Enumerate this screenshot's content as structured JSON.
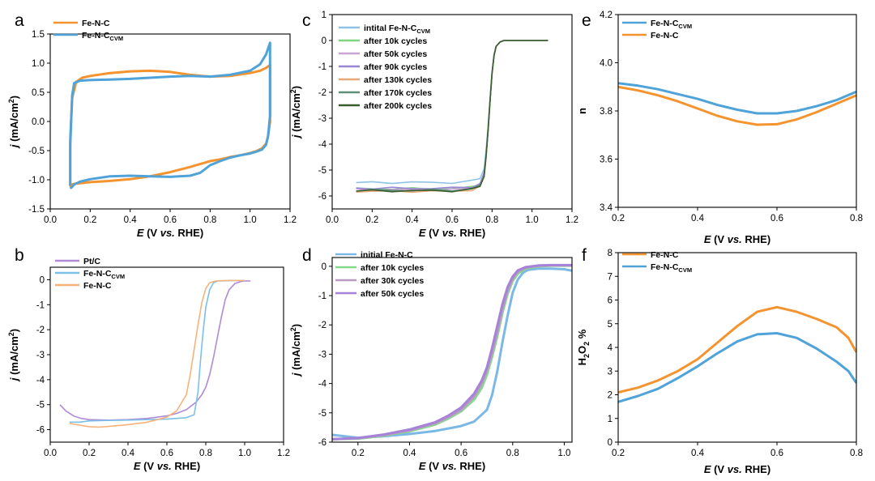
{
  "chart_data": [
    {
      "panel": "a",
      "type": "line",
      "xlabel": {
        "italic": "E",
        "rest": " (V vs. RHE)"
      },
      "ylabel": {
        "italic": "j",
        "rest": " (mA/cm",
        "sup": "2",
        "end": ")"
      },
      "xlim": [
        0,
        1.2
      ],
      "ylim": [
        -1.5,
        1.5
      ],
      "xticks": [
        "0.0",
        "0.2",
        "0.4",
        "0.6",
        "0.8",
        "1.0",
        "1.2"
      ],
      "yticks": [
        "-1.5",
        "-1.0",
        "-0.5",
        "0.0",
        "0.5",
        "1.0",
        "1.5"
      ],
      "legend": "top-left",
      "series": [
        {
          "name": "Fe-N-C",
          "name_sub": "",
          "color": "#f5932f",
          "x": [
            0.1,
            0.1,
            0.11,
            0.13,
            0.16,
            0.2,
            0.3,
            0.4,
            0.5,
            0.6,
            0.7,
            0.8,
            0.9,
            1.0,
            1.05,
            1.08,
            1.1,
            1.1,
            1.09,
            1.08,
            1.06,
            1.03,
            1.0,
            0.95,
            0.9,
            0.85,
            0.8,
            0.75,
            0.7,
            0.6,
            0.5,
            0.4,
            0.3,
            0.2,
            0.15,
            0.12,
            0.11,
            0.1,
            0.1
          ],
          "y": [
            -0.8,
            -0.3,
            0.4,
            0.68,
            0.75,
            0.78,
            0.83,
            0.86,
            0.87,
            0.85,
            0.8,
            0.77,
            0.78,
            0.83,
            0.87,
            0.92,
            0.97,
            0.0,
            -0.25,
            -0.38,
            -0.46,
            -0.51,
            -0.54,
            -0.58,
            -0.61,
            -0.65,
            -0.68,
            -0.73,
            -0.78,
            -0.87,
            -0.94,
            -0.99,
            -1.02,
            -1.04,
            -1.06,
            -1.07,
            -1.08,
            -1.1,
            -0.8
          ]
        },
        {
          "name": "Fe-N-C",
          "name_sub": "CVM",
          "color": "#4fa3d8",
          "x": [
            0.1,
            0.1,
            0.11,
            0.12,
            0.15,
            0.2,
            0.3,
            0.4,
            0.5,
            0.6,
            0.7,
            0.8,
            0.9,
            1.0,
            1.05,
            1.08,
            1.1,
            1.1,
            1.09,
            1.08,
            1.06,
            1.03,
            1.0,
            0.95,
            0.9,
            0.85,
            0.8,
            0.77,
            0.75,
            0.7,
            0.6,
            0.5,
            0.4,
            0.3,
            0.2,
            0.15,
            0.12,
            0.11,
            0.1
          ],
          "y": [
            -1.1,
            -0.4,
            0.45,
            0.66,
            0.7,
            0.71,
            0.72,
            0.73,
            0.75,
            0.77,
            0.78,
            0.77,
            0.8,
            0.87,
            0.98,
            1.15,
            1.35,
            0.1,
            -0.25,
            -0.4,
            -0.48,
            -0.52,
            -0.55,
            -0.58,
            -0.62,
            -0.68,
            -0.75,
            -0.83,
            -0.88,
            -0.93,
            -0.95,
            -0.94,
            -0.93,
            -0.94,
            -0.99,
            -1.03,
            -1.08,
            -1.12,
            -1.15
          ]
        }
      ]
    },
    {
      "panel": "b",
      "type": "line",
      "xlabel": {
        "italic": "E",
        "rest": " (V vs. RHE)"
      },
      "ylabel": {
        "italic": "j",
        "rest": " (mA/cm",
        "sup": "2",
        "end": ")"
      },
      "xlim": [
        0,
        1.2
      ],
      "ylim": [
        -6.5,
        0.5
      ],
      "xticks": [
        "0.0",
        "0.2",
        "0.4",
        "0.6",
        "0.8",
        "1.0",
        "1.2"
      ],
      "yticks": [
        "-6",
        "-5",
        "-4",
        "-3",
        "-2",
        "-1",
        "0"
      ],
      "legend": "top-left",
      "series": [
        {
          "name": "Pt/C",
          "name_sub": "",
          "color": "#b08ad6",
          "x": [
            0.05,
            0.08,
            0.12,
            0.16,
            0.2,
            0.3,
            0.4,
            0.5,
            0.6,
            0.65,
            0.7,
            0.75,
            0.78,
            0.8,
            0.82,
            0.84,
            0.86,
            0.88,
            0.9,
            0.92,
            0.95,
            0.98,
            1.0,
            1.03
          ],
          "y": [
            -5.0,
            -5.25,
            -5.45,
            -5.55,
            -5.6,
            -5.62,
            -5.6,
            -5.55,
            -5.45,
            -5.35,
            -5.2,
            -4.9,
            -4.6,
            -4.3,
            -3.8,
            -3.1,
            -2.3,
            -1.5,
            -0.8,
            -0.4,
            -0.15,
            -0.07,
            -0.05,
            -0.05
          ]
        },
        {
          "name": "Fe-N-C",
          "name_sub": "CVM",
          "color": "#7cbfe8",
          "x": [
            0.1,
            0.15,
            0.2,
            0.3,
            0.4,
            0.5,
            0.6,
            0.7,
            0.74,
            0.76,
            0.77,
            0.78,
            0.79,
            0.8,
            0.82,
            0.84,
            0.86,
            0.9,
            0.95,
            1.0
          ],
          "y": [
            -5.7,
            -5.7,
            -5.65,
            -5.63,
            -5.62,
            -5.6,
            -5.58,
            -5.52,
            -5.4,
            -4.5,
            -3.5,
            -2.6,
            -1.8,
            -1.1,
            -0.4,
            -0.12,
            -0.05,
            -0.04,
            -0.03,
            -0.03
          ]
        },
        {
          "name": "Fe-N-C",
          "name_sub": "",
          "color": "#f7b27a",
          "x": [
            0.1,
            0.15,
            0.2,
            0.25,
            0.3,
            0.4,
            0.5,
            0.6,
            0.65,
            0.7,
            0.72,
            0.74,
            0.76,
            0.78,
            0.8,
            0.82,
            0.85,
            0.9,
            0.95,
            1.0
          ],
          "y": [
            -5.75,
            -5.82,
            -5.88,
            -5.9,
            -5.87,
            -5.8,
            -5.7,
            -5.5,
            -5.25,
            -4.6,
            -3.8,
            -2.8,
            -1.8,
            -0.9,
            -0.35,
            -0.12,
            -0.05,
            -0.03,
            -0.03,
            -0.03
          ]
        }
      ]
    },
    {
      "panel": "c",
      "type": "line",
      "xlabel": {
        "italic": "E",
        "rest": " (V vs. RHE)"
      },
      "ylabel": {
        "italic": "j",
        "rest": " (mA/cm",
        "sup": "2",
        "end": ")"
      },
      "xlim": [
        0,
        1.2
      ],
      "ylim": [
        -6.5,
        1
      ],
      "xticks": [
        "0.0",
        "0.2",
        "0.4",
        "0.6",
        "0.8",
        "1.0",
        "1.2"
      ],
      "yticks": [
        "-6",
        "-5",
        "-4",
        "-3",
        "-2",
        "-1",
        "0",
        "1"
      ],
      "legend": "top-left",
      "series": [
        {
          "name": "intital Fe-N-C",
          "name_sub": "CVM",
          "color": "#8fc3e6",
          "plateau": -5.48
        },
        {
          "name": "after 10k cycles",
          "name_sub": "",
          "color": "#7ed67e",
          "plateau": -5.72
        },
        {
          "name": "after 50k cycles",
          "name_sub": "",
          "color": "#c9a5d6",
          "plateau": -5.76
        },
        {
          "name": "after 90k cycles",
          "name_sub": "",
          "color": "#9a86d4",
          "plateau": -5.7
        },
        {
          "name": "after 130k cycles",
          "name_sub": "",
          "color": "#e8a878",
          "plateau": -5.82
        },
        {
          "name": "after 170k cycles",
          "name_sub": "",
          "color": "#5e8f7a",
          "plateau": -5.78
        },
        {
          "name": "after 200k cycles",
          "name_sub": "",
          "color": "#3a5f2e",
          "plateau": -5.8
        }
      ],
      "shared_x": [
        0.12,
        0.2,
        0.3,
        0.4,
        0.5,
        0.6,
        0.7,
        0.74,
        0.76,
        0.77,
        0.78,
        0.79,
        0.8,
        0.81,
        0.82,
        0.84,
        0.86,
        0.9,
        0.95,
        1.0,
        1.05,
        1.08
      ],
      "shared_shape": [
        1.0,
        1.0,
        1.0,
        1.0,
        1.0,
        1.0,
        0.99,
        0.97,
        0.9,
        0.78,
        0.6,
        0.4,
        0.22,
        0.1,
        0.04,
        0.01,
        0.0,
        0.0,
        0.0,
        0.0,
        0.0,
        0.0
      ]
    },
    {
      "panel": "d",
      "type": "line",
      "xlabel": {
        "italic": "E",
        "rest": " (V vs. RHE)"
      },
      "ylabel": {
        "italic": "j",
        "rest": " (mA/cm",
        "sup": "2",
        "end": ")"
      },
      "xlim": [
        0.1,
        1.03
      ],
      "ylim": [
        -6,
        0.3
      ],
      "xticks": [
        "0.2",
        "0.4",
        "0.6",
        "0.8",
        "1.0"
      ],
      "xtick_values": [
        0.2,
        0.4,
        0.6,
        0.8,
        1.0
      ],
      "yticks": [
        "-6",
        "-5",
        "-4",
        "-3",
        "-2",
        "-1",
        "0"
      ],
      "legend": "top-left",
      "series": [
        {
          "name": "initial Fe-N-C",
          "name_sub": "",
          "color": "#7ab8e6",
          "x": [
            0.1,
            0.2,
            0.3,
            0.4,
            0.5,
            0.6,
            0.65,
            0.7,
            0.72,
            0.74,
            0.76,
            0.78,
            0.8,
            0.82,
            0.84,
            0.86,
            0.9,
            0.95,
            1.0,
            1.03
          ],
          "y": [
            -5.75,
            -5.85,
            -5.8,
            -5.72,
            -5.62,
            -5.45,
            -5.3,
            -4.9,
            -4.4,
            -3.6,
            -2.6,
            -1.7,
            -0.9,
            -0.45,
            -0.22,
            -0.12,
            -0.08,
            -0.08,
            -0.1,
            -0.15
          ]
        },
        {
          "name": "after 10k cycles",
          "name_sub": "",
          "color": "#85d98a",
          "x": [
            0.1,
            0.2,
            0.3,
            0.4,
            0.5,
            0.55,
            0.6,
            0.65,
            0.68,
            0.7,
            0.72,
            0.74,
            0.76,
            0.78,
            0.8,
            0.82,
            0.85,
            0.9,
            0.95,
            1.03
          ],
          "y": [
            -5.9,
            -5.88,
            -5.78,
            -5.63,
            -5.4,
            -5.2,
            -4.95,
            -4.55,
            -4.15,
            -3.7,
            -3.1,
            -2.4,
            -1.6,
            -0.95,
            -0.5,
            -0.25,
            -0.08,
            0.0,
            0.02,
            0.02
          ]
        },
        {
          "name": "after 30k cycles",
          "name_sub": "",
          "color": "#b99ac2",
          "x": [
            0.1,
            0.2,
            0.3,
            0.4,
            0.5,
            0.55,
            0.6,
            0.65,
            0.68,
            0.7,
            0.72,
            0.74,
            0.76,
            0.78,
            0.8,
            0.82,
            0.85,
            0.9,
            0.95,
            1.03
          ],
          "y": [
            -5.9,
            -5.87,
            -5.76,
            -5.6,
            -5.35,
            -5.15,
            -4.9,
            -4.45,
            -4.0,
            -3.55,
            -2.95,
            -2.25,
            -1.45,
            -0.85,
            -0.42,
            -0.18,
            -0.05,
            0.02,
            0.03,
            0.03
          ]
        },
        {
          "name": "after 50k cycles",
          "name_sub": "",
          "color": "#a782d9",
          "x": [
            0.1,
            0.2,
            0.3,
            0.4,
            0.5,
            0.55,
            0.6,
            0.65,
            0.68,
            0.7,
            0.72,
            0.74,
            0.76,
            0.78,
            0.8,
            0.82,
            0.85,
            0.9,
            0.95,
            1.03
          ],
          "y": [
            -5.9,
            -5.86,
            -5.74,
            -5.57,
            -5.32,
            -5.1,
            -4.82,
            -4.35,
            -3.9,
            -3.45,
            -2.8,
            -2.05,
            -1.3,
            -0.72,
            -0.35,
            -0.14,
            -0.03,
            0.03,
            0.04,
            0.04
          ]
        }
      ]
    },
    {
      "panel": "e",
      "type": "line",
      "xlabel": {
        "italic": "E",
        "rest": " (V vs. RHE)"
      },
      "ylabel": {
        "italic": "",
        "rest": "n",
        "sup": "",
        "end": ""
      },
      "xlim": [
        0.2,
        0.8
      ],
      "ylim": [
        3.4,
        4.2
      ],
      "xticks": [
        "0.2",
        "0.4",
        "0.6",
        "0.8"
      ],
      "yticks": [
        "3.4",
        "3.6",
        "3.8",
        "4.0",
        "4.2"
      ],
      "legend": "top-left",
      "series": [
        {
          "name": "Fe-N-C",
          "name_sub": "CVM",
          "color": "#4fa3d8",
          "x": [
            0.2,
            0.25,
            0.3,
            0.35,
            0.4,
            0.45,
            0.5,
            0.55,
            0.6,
            0.65,
            0.7,
            0.75,
            0.8
          ],
          "y": [
            3.915,
            3.905,
            3.89,
            3.87,
            3.85,
            3.825,
            3.805,
            3.79,
            3.79,
            3.8,
            3.82,
            3.845,
            3.88
          ]
        },
        {
          "name": "Fe-N-C",
          "name_sub": "",
          "color": "#f5932f",
          "x": [
            0.2,
            0.25,
            0.3,
            0.35,
            0.4,
            0.45,
            0.5,
            0.55,
            0.6,
            0.65,
            0.7,
            0.75,
            0.8
          ],
          "y": [
            3.9,
            3.885,
            3.865,
            3.84,
            3.81,
            3.78,
            3.757,
            3.743,
            3.745,
            3.765,
            3.795,
            3.83,
            3.865
          ]
        }
      ]
    },
    {
      "panel": "f",
      "type": "line",
      "xlabel": {
        "italic": "E",
        "rest": " (V vs. RHE)"
      },
      "ylabel": {
        "italic": "",
        "rest": "H",
        "sub1": "2",
        "mid": "O",
        "sub2": "2",
        "end": " %"
      },
      "xlim": [
        0.2,
        0.8
      ],
      "ylim": [
        0,
        8
      ],
      "xticks": [
        "0.2",
        "0.4",
        "0.6",
        "0.8"
      ],
      "yticks": [
        "0",
        "1",
        "2",
        "3",
        "4",
        "5",
        "6",
        "7",
        "8"
      ],
      "legend": "top-left",
      "series": [
        {
          "name": "Fe-N-C",
          "name_sub": "",
          "color": "#f5932f",
          "x": [
            0.2,
            0.25,
            0.3,
            0.35,
            0.4,
            0.45,
            0.5,
            0.55,
            0.6,
            0.65,
            0.7,
            0.75,
            0.78,
            0.8
          ],
          "y": [
            2.1,
            2.3,
            2.6,
            3.0,
            3.5,
            4.2,
            4.9,
            5.5,
            5.7,
            5.5,
            5.2,
            4.85,
            4.4,
            3.8
          ]
        },
        {
          "name": "Fe-N-C",
          "name_sub": "CVM",
          "color": "#4fa3d8",
          "x": [
            0.2,
            0.25,
            0.3,
            0.35,
            0.4,
            0.45,
            0.5,
            0.55,
            0.6,
            0.65,
            0.7,
            0.75,
            0.78,
            0.8
          ],
          "y": [
            1.7,
            1.95,
            2.25,
            2.7,
            3.2,
            3.75,
            4.25,
            4.55,
            4.6,
            4.4,
            3.95,
            3.4,
            3.0,
            2.5
          ]
        }
      ]
    }
  ]
}
